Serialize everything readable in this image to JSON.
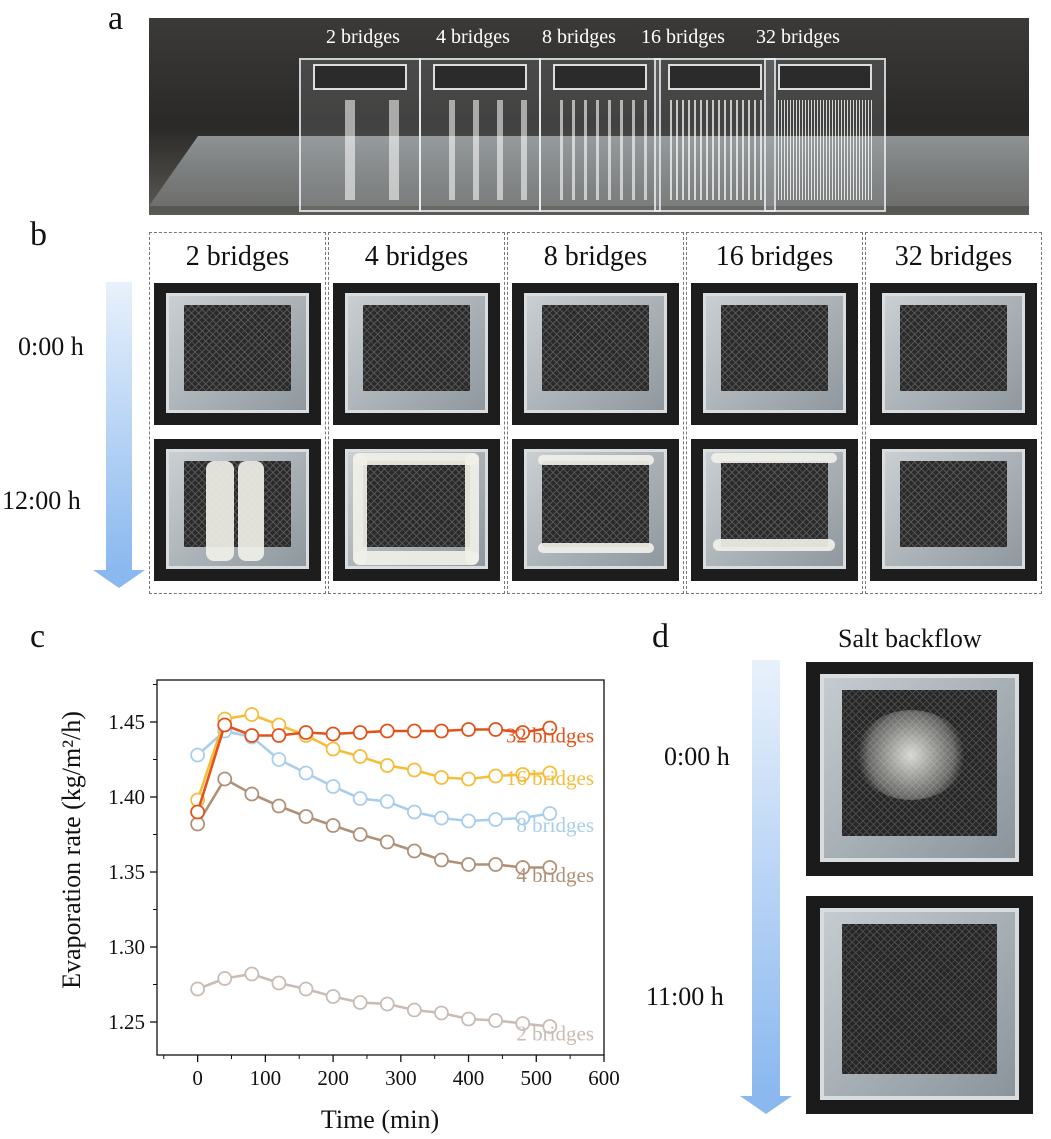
{
  "panel_a": {
    "letter": "a",
    "labels": [
      "2 bridges",
      "4 bridges",
      "8 bridges",
      "16 bridges",
      "32 bridges"
    ]
  },
  "panel_b": {
    "letter": "b",
    "columns": [
      "2 bridges",
      "4 bridges",
      "8 bridges",
      "16 bridges",
      "32 bridges"
    ],
    "times": [
      "0:00 h",
      "12:00 h"
    ]
  },
  "panel_c": {
    "letter": "c"
  },
  "panel_d": {
    "letter": "d",
    "title": "Salt backflow",
    "times": [
      "0:00 h",
      "11:00 h"
    ]
  },
  "colors": {
    "32 bridges": "#e0531c",
    "16 bridges": "#f5bd3a",
    "8 bridges": "#a9cdec",
    "4 bridges": "#b09178",
    "2 bridges": "#c8bcb4",
    "arrow": "#8ab8ef"
  },
  "chart_data": {
    "type": "line",
    "xlabel": "Time (min)",
    "ylabel": "Evaporation rate (kg/m²/h)",
    "xlim": [
      -60,
      600
    ],
    "ylim": [
      1.228,
      1.478
    ],
    "xticks": [
      0,
      100,
      200,
      300,
      400,
      500,
      600
    ],
    "yticks": [
      1.25,
      1.3,
      1.35,
      1.4,
      1.45
    ],
    "ytick_labels": [
      "1.25",
      "1.30",
      "1.35",
      "1.40",
      "1.45"
    ],
    "x": [
      0,
      40,
      80,
      120,
      160,
      200,
      240,
      280,
      320,
      360,
      400,
      440,
      480,
      520
    ],
    "series": [
      {
        "name": "32 bridges",
        "values": [
          1.39,
          1.448,
          1.441,
          1.441,
          1.443,
          1.442,
          1.443,
          1.444,
          1.444,
          1.444,
          1.445,
          1.445,
          1.443,
          1.446
        ]
      },
      {
        "name": "16 bridges",
        "values": [
          1.398,
          1.452,
          1.455,
          1.448,
          1.441,
          1.432,
          1.427,
          1.421,
          1.418,
          1.413,
          1.412,
          1.414,
          1.415,
          1.416
        ]
      },
      {
        "name": "8 bridges",
        "values": [
          1.428,
          1.444,
          1.44,
          1.425,
          1.416,
          1.407,
          1.399,
          1.397,
          1.39,
          1.386,
          1.384,
          1.385,
          1.386,
          1.389
        ]
      },
      {
        "name": "4 bridges",
        "values": [
          1.382,
          1.412,
          1.402,
          1.394,
          1.387,
          1.381,
          1.375,
          1.37,
          1.364,
          1.358,
          1.355,
          1.355,
          1.353,
          1.353
        ]
      },
      {
        "name": "2 bridges",
        "values": [
          1.272,
          1.279,
          1.282,
          1.276,
          1.272,
          1.267,
          1.263,
          1.262,
          1.258,
          1.256,
          1.252,
          1.251,
          1.249,
          1.247
        ]
      }
    ]
  }
}
